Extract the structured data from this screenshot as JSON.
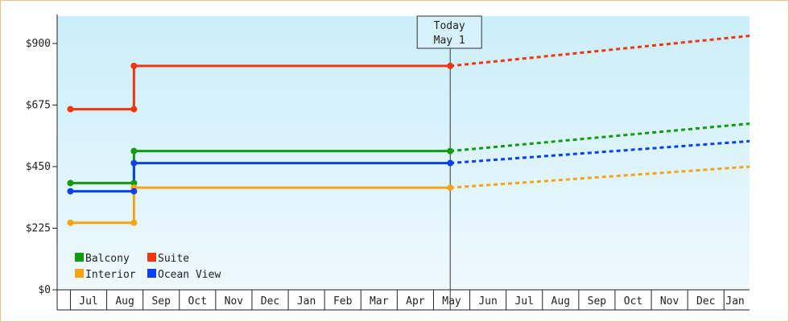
{
  "chart_data": {
    "type": "line",
    "title": "",
    "xlabel": "",
    "ylabel": "",
    "ylim": [
      0,
      1000
    ],
    "y_ticks": [
      {
        "value": 0,
        "label": "$0"
      },
      {
        "value": 225,
        "label": "$225"
      },
      {
        "value": 450,
        "label": "$450"
      },
      {
        "value": 675,
        "label": "$675"
      },
      {
        "value": 900,
        "label": "$900"
      }
    ],
    "x_months": [
      "Jul",
      "Aug",
      "Sep",
      "Oct",
      "Nov",
      "Dec",
      "Jan",
      "Feb",
      "Mar",
      "Apr",
      "May",
      "Jun",
      "Jul",
      "Aug",
      "Sep",
      "Oct",
      "Nov",
      "Dec",
      "Jan"
    ],
    "today_marker": {
      "line1": "Today",
      "line2": "May 1",
      "month_index": 9.96
    },
    "legend_placement": "bottom-left",
    "grid": false,
    "series": [
      {
        "name": "Balcony",
        "color": "#129a12",
        "observed": [
          [
            -0.5,
            390
          ],
          [
            1.25,
            390
          ],
          [
            1.25,
            507
          ],
          [
            9.96,
            507
          ]
        ],
        "forecast": [
          [
            9.96,
            507
          ],
          [
            19,
            607
          ]
        ]
      },
      {
        "name": "Suite",
        "color": "#f0360e",
        "observed": [
          [
            -0.5,
            660
          ],
          [
            1.25,
            660
          ],
          [
            1.25,
            818
          ],
          [
            9.96,
            818
          ]
        ],
        "forecast": [
          [
            9.96,
            818
          ],
          [
            19,
            928
          ]
        ]
      },
      {
        "name": "Interior",
        "color": "#f4a414",
        "observed": [
          [
            -0.5,
            245
          ],
          [
            1.25,
            245
          ],
          [
            1.25,
            373
          ],
          [
            9.96,
            373
          ]
        ],
        "forecast": [
          [
            9.96,
            373
          ],
          [
            19,
            450
          ]
        ]
      },
      {
        "name": "Ocean View",
        "color": "#0a40f0",
        "observed": [
          [
            -0.5,
            360
          ],
          [
            1.25,
            360
          ],
          [
            1.25,
            463
          ],
          [
            9.96,
            463
          ]
        ],
        "forecast": [
          [
            9.96,
            463
          ],
          [
            19,
            543
          ]
        ]
      }
    ]
  }
}
